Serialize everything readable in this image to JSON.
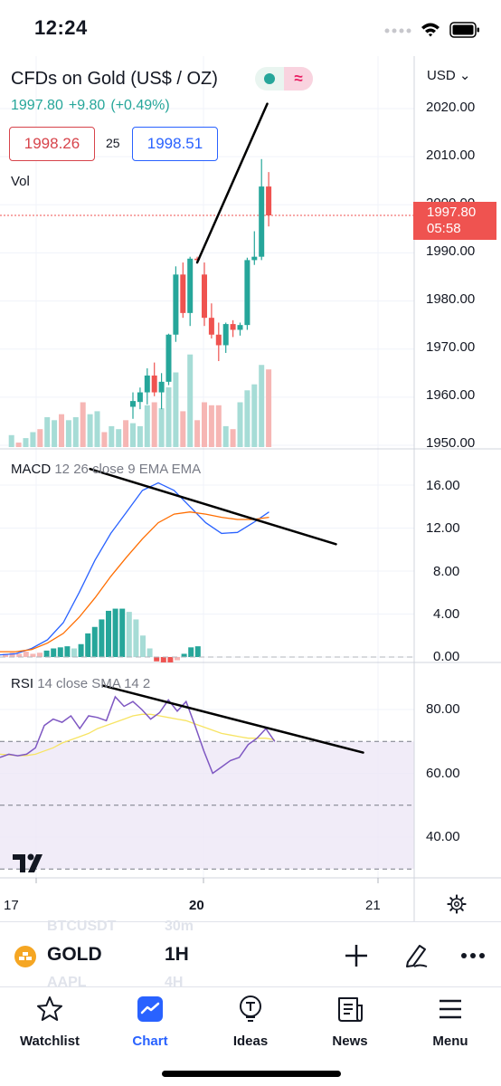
{
  "status": {
    "time": "12:24"
  },
  "symbol": {
    "title": "CFDs on Gold (US$ / OZ)",
    "last": "1997.80",
    "change": "+9.80",
    "change_pct": "(+0.49%)",
    "bid": "1998.26",
    "spread": "25",
    "ask": "1998.51",
    "volume_label": "Vol"
  },
  "price_axis": {
    "currency": "USD",
    "ticks": [
      "2020.00",
      "2010.00",
      "2000.00",
      "1990.00",
      "1980.00",
      "1970.00",
      "1960.00",
      "1950.00"
    ],
    "last_price_tag": "1997.80",
    "countdown": "05:58"
  },
  "macd": {
    "name": "MACD",
    "params": "12 26 close 9 EMA EMA",
    "ticks": [
      "16.00",
      "12.00",
      "8.00",
      "4.00",
      "0.00"
    ]
  },
  "rsi": {
    "name": "RSI",
    "params": "14 close SMA 14 2",
    "ticks": [
      "80.00",
      "60.00",
      "40.00"
    ]
  },
  "time_axis": {
    "labels": [
      "17",
      "20",
      "21"
    ]
  },
  "toolbar": {
    "symbol": "GOLD",
    "timeframe": "1H",
    "ghost_symbol_top": "BTCUSDT",
    "ghost_tf_top": "30m",
    "ghost_symbol_bottom": "AAPL",
    "ghost_tf_bottom": "4H"
  },
  "nav": {
    "items": [
      {
        "label": "Watchlist",
        "icon": "star-icon"
      },
      {
        "label": "Chart",
        "icon": "chart-icon"
      },
      {
        "label": "Ideas",
        "icon": "ideas-icon"
      },
      {
        "label": "News",
        "icon": "news-icon"
      },
      {
        "label": "Menu",
        "icon": "menu-icon"
      }
    ],
    "active": "Chart"
  },
  "colors": {
    "up": "#26a69a",
    "down": "#ef5350",
    "accent": "#2962ff",
    "macd_line": "#2962ff",
    "signal_line": "#ff6d00",
    "rsi_line": "#7e57c2",
    "rsi_ma": "#f7e463"
  },
  "chart_data": {
    "type": "candlestick",
    "price_candles": [
      [
        1958,
        1961,
        1955.5,
        1959.2
      ],
      [
        1959,
        1962,
        1957.5,
        1961
      ],
      [
        1961,
        1966,
        1958.5,
        1964.5
      ],
      [
        1964.5,
        1967.2,
        1960.2,
        1961
      ],
      [
        1961,
        1965,
        1957.5,
        1963.2
      ],
      [
        1963.2,
        1973.2,
        1962.5,
        1973
      ],
      [
        1973,
        1987.2,
        1971.5,
        1985.5
      ],
      [
        1985.5,
        1988,
        1976.5,
        1977.5
      ],
      [
        1977.5,
        1989.2,
        1974.8,
        1988.8
      ],
      [
        1988.8,
        1989.2,
        1988,
        1988.5
      ],
      [
        1985.5,
        1988,
        1974.8,
        1976.5
      ],
      [
        1976.5,
        1979.5,
        1972.2,
        1973
      ],
      [
        1973,
        1975.5,
        1967.5,
        1970.8
      ],
      [
        1970.8,
        1975.5,
        1969.2,
        1975.2
      ],
      [
        1975.2,
        1976,
        1972.5,
        1974
      ],
      [
        1974,
        1975.5,
        1972.8,
        1975
      ],
      [
        1975,
        1989,
        1974,
        1988.5
      ],
      [
        1988.5,
        1994.5,
        1987.5,
        1989.2
      ],
      [
        1989.2,
        2009.5,
        1988.5,
        2003.8
      ],
      [
        2003.8,
        2006.8,
        1995.5,
        1997.8
      ]
    ],
    "volume": [
      16,
      14,
      28,
      30,
      26,
      40,
      50,
      24,
      62,
      18,
      30,
      28,
      28,
      14,
      12,
      30,
      38,
      42,
      55,
      52
    ],
    "macd_series": {
      "macd": [
        0.2,
        0.3,
        0.8,
        1.6,
        3.2,
        6,
        9,
        11.5,
        13.5,
        15.5,
        16.2,
        15.5,
        14,
        12.5,
        11.5,
        11.6,
        12.5,
        13.5
      ],
      "signal": [
        0.5,
        0.5,
        0.7,
        1.3,
        2.2,
        3.7,
        5.5,
        7.5,
        9.3,
        11,
        12.5,
        13.3,
        13.5,
        13.3,
        13,
        12.8,
        12.8,
        13
      ]
    },
    "macd_hist": [
      0.6,
      0.8,
      0.9,
      1,
      0.8,
      1.2,
      2.2,
      2.8,
      3.5,
      4.3,
      4.5,
      4.5,
      4.2,
      3.5,
      2,
      0.8,
      -0.4,
      -0.5,
      -0.5,
      -0.3,
      0.3,
      0.9,
      1
    ],
    "rsi_series": {
      "rsi": [
        65,
        66,
        65.5,
        66,
        68,
        75,
        77,
        76,
        78,
        74,
        78,
        77.5,
        76.5,
        84,
        81,
        82.5,
        80,
        77,
        79,
        83,
        79.5,
        82.5,
        75,
        67,
        60,
        62,
        64,
        65,
        69,
        71,
        74,
        70
      ],
      "ma": [
        66,
        65.8,
        65.5,
        65.6,
        66,
        67,
        68,
        69.5,
        70.5,
        71.5,
        72.5,
        74,
        75,
        76,
        77,
        78,
        78.5,
        78.5,
        78,
        77.5,
        77,
        76.5,
        75.5,
        74.5,
        73.5,
        72.5,
        72,
        71.5,
        71,
        71,
        71,
        70.5
      ]
    },
    "trendlines": [
      {
        "pane": "price",
        "from": [
          9,
          1988
        ],
        "to": [
          18.8,
          2021
        ]
      },
      {
        "pane": "macd",
        "from": [
          -6,
          17.5
        ],
        "to": [
          15,
          10.5
        ]
      },
      {
        "pane": "rsi",
        "from": [
          -6,
          87.5
        ],
        "to": [
          15,
          66.5
        ]
      }
    ],
    "rsi_band": [
      30,
      70
    ],
    "price_ylim": [
      1950,
      2020
    ],
    "macd_ylim": [
      0,
      16
    ],
    "rsi_ylim": [
      40,
      80
    ]
  }
}
